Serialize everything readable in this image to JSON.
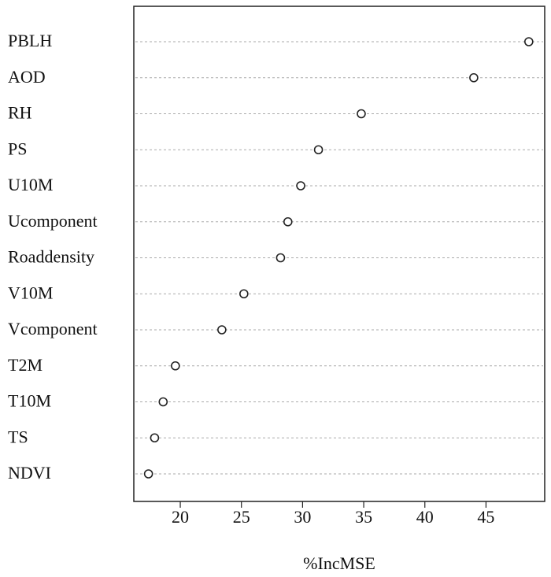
{
  "chart_data": {
    "type": "dot",
    "xlabel": "%IncMSE",
    "categories": [
      "PBLH",
      "AOD",
      "RH",
      "PS",
      "U10M",
      "Ucomponent",
      "Roaddensity",
      "V10M",
      "Vcomponent",
      "T2M",
      "T10M",
      "TS",
      "NDVI"
    ],
    "values": [
      48.5,
      44.0,
      34.8,
      31.3,
      29.85,
      28.8,
      28.2,
      25.2,
      23.4,
      19.6,
      18.6,
      17.9,
      17.4
    ],
    "color": "#222222",
    "xlim": [
      16.2,
      49.8
    ],
    "xticks": [
      20,
      25,
      30,
      35,
      40,
      45
    ]
  }
}
